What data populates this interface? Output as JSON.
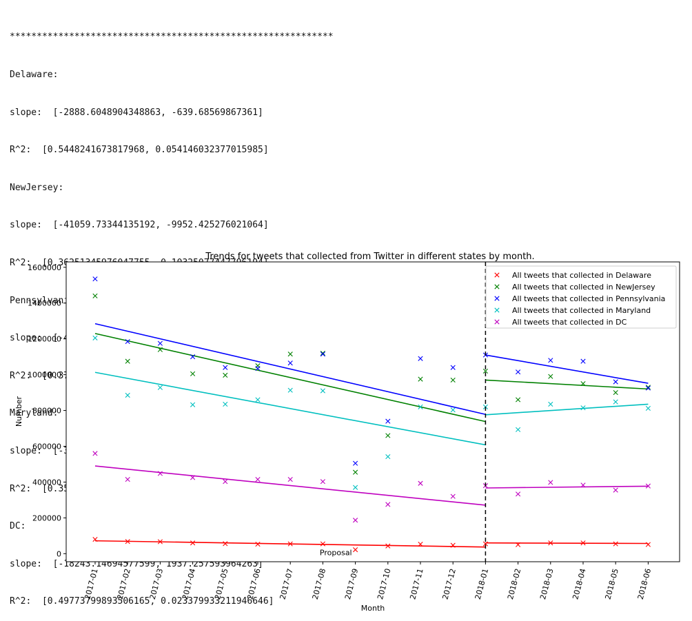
{
  "console": {
    "separator": "************************************************************",
    "states": [
      {
        "name": "Delaware:",
        "slope": "slope:  [-2888.6048904348863, -639.68569867361]",
        "r2": "R^2:  [0.5448241673817968, 0.054146032377015985]"
      },
      {
        "name": "NewJersey:",
        "slope": "slope:  [-41059.73344135192, -9952.425276021064]",
        "r2": "R^2:  [0.36251345976047755, 0.10325077447796194]"
      },
      {
        "name": "Pennsylvania:",
        "slope": "slope:  [-42239.66755705239, -31528.771252567665]",
        "r2": "R^2:  [0.3793955789666248, 0.6357053639139558]"
      },
      {
        "name": "Maryland:",
        "slope": "slope:  [-33751.97202487556, 11843.940888864154]",
        "r2": "R^2:  [0.35829095436761593, 0.1605005581138369]"
      },
      {
        "name": "DC:",
        "slope": "slope:  [-18243.14694577599, 1937.257593964263]",
        "r2": "R^2:  [0.49773799893506165, 0.023379933211946646]"
      }
    ]
  },
  "chart_data": {
    "type": "scatter",
    "title": "Trends for tweets that collected from Twitter in different states by month.",
    "xlabel": "Month",
    "ylabel": "Number",
    "ylim": [
      -45000,
      1630000
    ],
    "yticks": [
      0,
      200000,
      400000,
      600000,
      800000,
      1000000,
      1200000,
      1400000,
      1600000
    ],
    "ytick_labels": [
      "0",
      "200000",
      "400000",
      "600000",
      "800000",
      "1000000",
      "1200000",
      "1400000",
      "1600000"
    ],
    "categories": [
      "2017-01",
      "2017-02",
      "2017-03",
      "2017-04",
      "2017-05",
      "2017-06",
      "2017-07",
      "2017-08",
      "2017-09",
      "2017-10",
      "2017-11",
      "2017-12",
      "2018-01",
      "2018-02",
      "2018-03",
      "2018-04",
      "2018-05",
      "2018-06"
    ],
    "grid": false,
    "legend_position": "top-right",
    "annotation": {
      "text": "Proposal",
      "category": "2018-01"
    },
    "series": [
      {
        "name": "All tweets that collected in Delaware",
        "color": "#ff0000",
        "values": [
          80000,
          68000,
          67000,
          60000,
          56000,
          53000,
          55000,
          55000,
          22000,
          43000,
          53000,
          47000,
          55000,
          50000,
          60000,
          60000,
          55000,
          51000
        ],
        "fit1": [
          72000,
          37000
        ],
        "fit2": [
          60000,
          57000
        ]
      },
      {
        "name": "All tweets that collected in NewJersey",
        "color": "#008000",
        "values": [
          1440000,
          1075000,
          1140000,
          1005000,
          997000,
          1050000,
          1115000,
          1120000,
          455000,
          660000,
          975000,
          970000,
          1020000,
          860000,
          990000,
          950000,
          900000,
          930000
        ],
        "fit1": [
          1230000,
          738000
        ],
        "fit2": [
          970000,
          920000
        ]
      },
      {
        "name": "All tweets that collected in Pennsylvania",
        "color": "#0000ff",
        "values": [
          1535000,
          1185000,
          1175000,
          1100000,
          1040000,
          1035000,
          1065000,
          1115000,
          505000,
          740000,
          1090000,
          1040000,
          1110000,
          1015000,
          1080000,
          1075000,
          960000,
          925000
        ],
        "fit1": [
          1285000,
          778000
        ],
        "fit2": [
          1110000,
          952000
        ]
      },
      {
        "name": "All tweets that collected in Maryland",
        "color": "#00bfbf",
        "values": [
          1205000,
          885000,
          928000,
          832000,
          835000,
          860000,
          913000,
          910000,
          370000,
          542000,
          820000,
          803000,
          820000,
          693000,
          835000,
          815000,
          848000,
          812000
        ],
        "fit1": [
          1013000,
          608000
        ],
        "fit2": [
          776000,
          835000
        ]
      },
      {
        "name": "All tweets that collected in DC",
        "color": "#bf00bf",
        "values": [
          560000,
          415000,
          448000,
          425000,
          403000,
          415000,
          415000,
          403000,
          187000,
          275000,
          393000,
          320000,
          380000,
          333000,
          398000,
          383000,
          355000,
          378000
        ],
        "fit1": [
          490000,
          271000
        ],
        "fit2": [
          367000,
          377000
        ]
      }
    ]
  }
}
